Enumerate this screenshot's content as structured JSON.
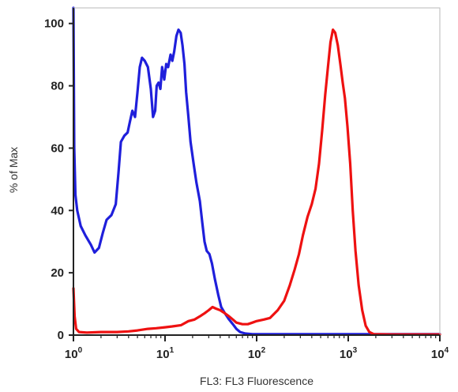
{
  "chart_data": {
    "type": "line",
    "xlabel": "FL3: FL3 Fluorescence",
    "ylabel": "% of Max",
    "x_scale": "log",
    "xlim": [
      1,
      10000
    ],
    "ylim": [
      0,
      105
    ],
    "x_ticks": [
      1,
      10,
      100,
      1000,
      10000
    ],
    "x_tick_labels": [
      {
        "base": "10",
        "exp": "0"
      },
      {
        "base": "10",
        "exp": "1"
      },
      {
        "base": "10",
        "exp": "2"
      },
      {
        "base": "10",
        "exp": "3"
      },
      {
        "base": "10",
        "exp": "4"
      }
    ],
    "y_ticks": [
      0,
      20,
      40,
      60,
      80,
      100
    ],
    "y_tick_labels": [
      "0",
      "20",
      "40",
      "60",
      "80",
      "100"
    ],
    "grid": false,
    "legend": "none",
    "series": [
      {
        "color": "#1f1fdb",
        "points": [
          [
            1.0,
            105
          ],
          [
            1.02,
            60
          ],
          [
            1.05,
            45
          ],
          [
            1.1,
            40
          ],
          [
            1.2,
            35
          ],
          [
            1.35,
            32
          ],
          [
            1.55,
            29
          ],
          [
            1.7,
            26.5
          ],
          [
            1.9,
            28
          ],
          [
            2.1,
            33
          ],
          [
            2.3,
            37
          ],
          [
            2.6,
            38.5
          ],
          [
            2.9,
            42
          ],
          [
            3.1,
            52
          ],
          [
            3.3,
            62
          ],
          [
            3.6,
            64
          ],
          [
            3.9,
            65
          ],
          [
            4.1,
            68
          ],
          [
            4.4,
            72
          ],
          [
            4.7,
            70
          ],
          [
            5.0,
            78
          ],
          [
            5.3,
            86
          ],
          [
            5.6,
            89
          ],
          [
            6.0,
            88
          ],
          [
            6.5,
            86
          ],
          [
            7.0,
            79
          ],
          [
            7.4,
            70
          ],
          [
            7.8,
            72
          ],
          [
            8.1,
            80
          ],
          [
            8.5,
            81
          ],
          [
            8.9,
            79
          ],
          [
            9.3,
            86
          ],
          [
            9.8,
            82
          ],
          [
            10.3,
            87
          ],
          [
            10.8,
            86
          ],
          [
            11.5,
            90
          ],
          [
            12.0,
            88
          ],
          [
            12.6,
            91
          ],
          [
            13.3,
            96
          ],
          [
            14.0,
            98
          ],
          [
            14.8,
            97
          ],
          [
            15.5,
            93
          ],
          [
            16.3,
            87
          ],
          [
            17.0,
            78
          ],
          [
            18.0,
            70
          ],
          [
            19.0,
            62
          ],
          [
            20.5,
            55
          ],
          [
            22.0,
            49
          ],
          [
            24.0,
            43
          ],
          [
            25.5,
            36
          ],
          [
            27.0,
            30
          ],
          [
            28.5,
            27
          ],
          [
            30.5,
            26
          ],
          [
            32.5,
            23
          ],
          [
            35.0,
            18
          ],
          [
            38.0,
            13
          ],
          [
            41.0,
            9
          ],
          [
            45.0,
            7
          ],
          [
            50.0,
            5
          ],
          [
            55.0,
            3.5
          ],
          [
            60.0,
            2
          ],
          [
            66.0,
            1
          ],
          [
            75.0,
            0.5
          ],
          [
            90.0,
            0.3
          ],
          [
            200.0,
            0.3
          ],
          [
            1000.0,
            0.3
          ],
          [
            10000.0,
            0.3
          ]
        ]
      },
      {
        "color": "#ee1111",
        "points": [
          [
            1.0,
            15
          ],
          [
            1.03,
            6
          ],
          [
            1.07,
            2
          ],
          [
            1.15,
            1
          ],
          [
            1.4,
            0.8
          ],
          [
            2.0,
            1
          ],
          [
            3.0,
            1
          ],
          [
            4.0,
            1.2
          ],
          [
            5.0,
            1.5
          ],
          [
            6.5,
            2
          ],
          [
            8.0,
            2.2
          ],
          [
            10.0,
            2.5
          ],
          [
            12.0,
            2.8
          ],
          [
            15.0,
            3.2
          ],
          [
            18.0,
            4.5
          ],
          [
            21.0,
            5
          ],
          [
            24.0,
            6
          ],
          [
            27.0,
            7
          ],
          [
            30.0,
            8
          ],
          [
            33.0,
            9
          ],
          [
            36.0,
            8.5
          ],
          [
            40.0,
            8
          ],
          [
            45.0,
            7
          ],
          [
            50.0,
            6
          ],
          [
            55.0,
            5
          ],
          [
            60.0,
            4
          ],
          [
            70.0,
            3.5
          ],
          [
            80.0,
            3.5
          ],
          [
            90.0,
            4
          ],
          [
            100.0,
            4.5
          ],
          [
            120.0,
            5
          ],
          [
            140.0,
            5.5
          ],
          [
            170.0,
            8
          ],
          [
            200.0,
            11
          ],
          [
            230.0,
            16
          ],
          [
            260.0,
            21
          ],
          [
            290.0,
            26
          ],
          [
            320.0,
            32
          ],
          [
            360.0,
            38
          ],
          [
            400.0,
            42
          ],
          [
            440.0,
            47
          ],
          [
            480.0,
            55
          ],
          [
            520.0,
            66
          ],
          [
            560.0,
            77
          ],
          [
            600.0,
            86
          ],
          [
            640.0,
            94
          ],
          [
            680.0,
            98
          ],
          [
            720.0,
            97
          ],
          [
            770.0,
            93
          ],
          [
            820.0,
            87
          ],
          [
            870.0,
            81
          ],
          [
            920.0,
            76
          ],
          [
            980.0,
            67
          ],
          [
            1050.0,
            55
          ],
          [
            1120.0,
            40
          ],
          [
            1200.0,
            27
          ],
          [
            1300.0,
            16
          ],
          [
            1420.0,
            8
          ],
          [
            1550.0,
            3
          ],
          [
            1700.0,
            1
          ],
          [
            1900.0,
            0.3
          ],
          [
            3000.0,
            0.2
          ],
          [
            10000.0,
            0.2
          ]
        ]
      }
    ]
  }
}
